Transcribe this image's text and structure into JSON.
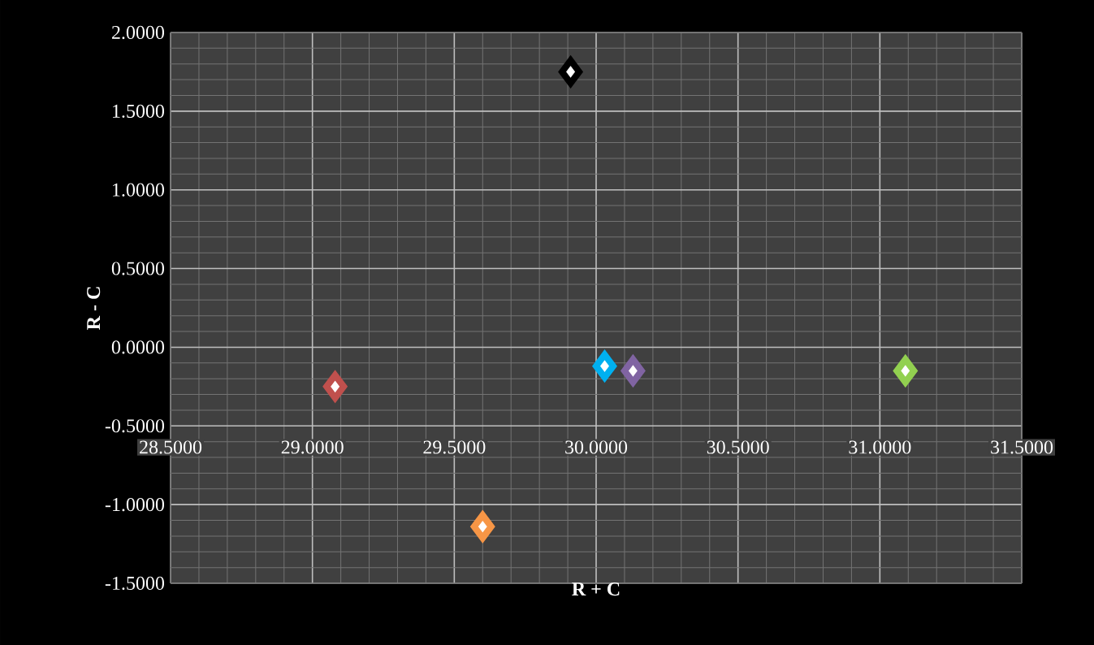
{
  "chart_data": {
    "type": "scatter",
    "xlabel": "R + C",
    "ylabel": "R - C",
    "marker": "diamond",
    "grid": true,
    "x": [
      29.08,
      29.6,
      29.91,
      30.03,
      30.13,
      31.09
    ],
    "values": [
      -0.25,
      -1.14,
      1.75,
      -0.12,
      -0.15,
      -0.15
    ],
    "colors": [
      "#c0504d",
      "#f79646",
      "#000000",
      "#00b0f0",
      "#8064a2",
      "#92d050"
    ],
    "xlim": [
      28.5,
      31.5
    ],
    "xticks": [
      {
        "value": 28.5,
        "label": "28.5000"
      },
      {
        "value": 29,
        "label": "29.0000"
      },
      {
        "value": 29.5,
        "label": "29.5000"
      },
      {
        "value": 30,
        "label": "30.0000"
      },
      {
        "value": 30.5,
        "label": "30.5000"
      },
      {
        "value": 31,
        "label": "31.0000"
      },
      {
        "value": 31.5,
        "label": "31.5000"
      }
    ],
    "ylim": [
      -1.5,
      2
    ],
    "yticks": [
      {
        "value": -1.5,
        "label": "-1.5000"
      },
      {
        "value": -1,
        "label": "-1.0000"
      },
      {
        "value": -0.5,
        "label": "-0.5000"
      },
      {
        "value": 0,
        "label": "0.0000"
      },
      {
        "value": 0.5,
        "label": "0.5000"
      },
      {
        "value": 1,
        "label": "1.0000"
      },
      {
        "value": 1.5,
        "label": "1.5000"
      },
      {
        "value": 2,
        "label": "2.0000"
      }
    ]
  }
}
